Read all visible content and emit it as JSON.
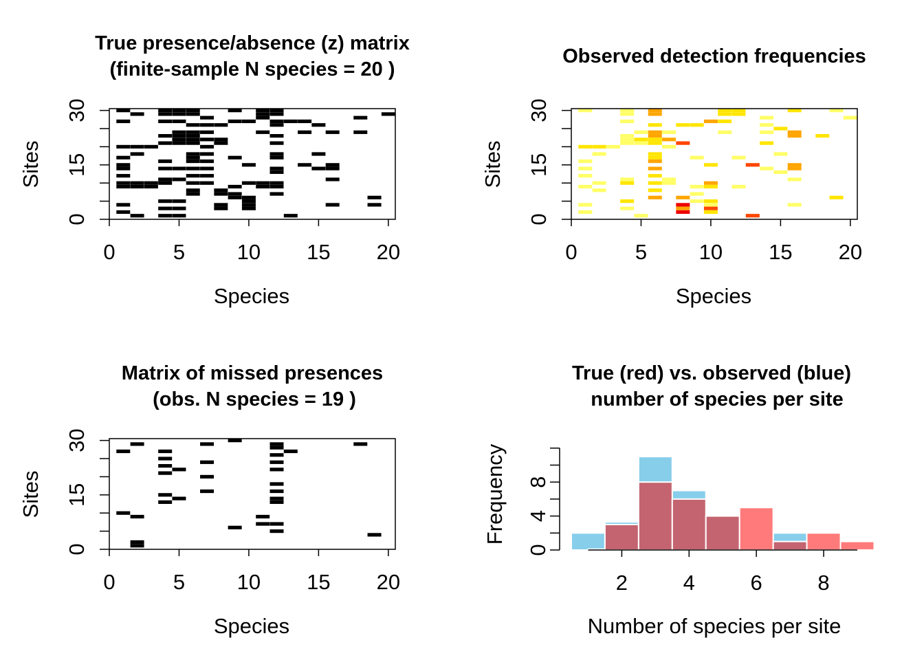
{
  "chart_data": [
    {
      "type": "heatmap",
      "title_lines": [
        "True presence/absence (z) matrix",
        "(finite-sample N species = 20 )"
      ],
      "xlabel": "Species",
      "ylabel": "Sites",
      "xlim": [
        0,
        20.5
      ],
      "ylim": [
        0,
        30.5
      ],
      "xticks": [
        0,
        5,
        10,
        15,
        20
      ],
      "yticks": [
        0,
        15,
        30
      ],
      "colors": [
        "#000000"
      ],
      "cells": [
        [
          1,
          30,
          1
        ],
        [
          1,
          27,
          1
        ],
        [
          1,
          20,
          1
        ],
        [
          1,
          17,
          1
        ],
        [
          1,
          15,
          1
        ],
        [
          1,
          14,
          1
        ],
        [
          1,
          12,
          1
        ],
        [
          1,
          10,
          1
        ],
        [
          1,
          9,
          1
        ],
        [
          1,
          4,
          1
        ],
        [
          1,
          2,
          1
        ],
        [
          2,
          29,
          1
        ],
        [
          2,
          20,
          1
        ],
        [
          2,
          18,
          1
        ],
        [
          2,
          10,
          1
        ],
        [
          2,
          9,
          1
        ],
        [
          2,
          1,
          1
        ],
        [
          3,
          20,
          1
        ],
        [
          3,
          10,
          1
        ],
        [
          3,
          9,
          1
        ],
        [
          4,
          30,
          1
        ],
        [
          4,
          29,
          1
        ],
        [
          4,
          27,
          1
        ],
        [
          4,
          23,
          1
        ],
        [
          4,
          21,
          1
        ],
        [
          4,
          16,
          1
        ],
        [
          4,
          14,
          1
        ],
        [
          4,
          11,
          1
        ],
        [
          4,
          10,
          1
        ],
        [
          4,
          5,
          1
        ],
        [
          4,
          3,
          1
        ],
        [
          4,
          1,
          1
        ],
        [
          5,
          30,
          1
        ],
        [
          5,
          29,
          1
        ],
        [
          5,
          27,
          1
        ],
        [
          5,
          24,
          1
        ],
        [
          5,
          23,
          1
        ],
        [
          5,
          22,
          1
        ],
        [
          5,
          21,
          1
        ],
        [
          5,
          14,
          1
        ],
        [
          5,
          11,
          1
        ],
        [
          5,
          5,
          1
        ],
        [
          5,
          3,
          1
        ],
        [
          5,
          1,
          1
        ],
        [
          6,
          30,
          1
        ],
        [
          6,
          29,
          1
        ],
        [
          6,
          26,
          1
        ],
        [
          6,
          24,
          1
        ],
        [
          6,
          23,
          1
        ],
        [
          6,
          22,
          1
        ],
        [
          6,
          21,
          1
        ],
        [
          6,
          18,
          1
        ],
        [
          6,
          17,
          1
        ],
        [
          6,
          16,
          1
        ],
        [
          6,
          14,
          1
        ],
        [
          6,
          12,
          1
        ],
        [
          6,
          10,
          1
        ],
        [
          6,
          8,
          1
        ],
        [
          6,
          7,
          1
        ],
        [
          7,
          28,
          1
        ],
        [
          7,
          26,
          1
        ],
        [
          7,
          24,
          1
        ],
        [
          7,
          22,
          1
        ],
        [
          7,
          20,
          1
        ],
        [
          7,
          18,
          1
        ],
        [
          7,
          16,
          1
        ],
        [
          7,
          14,
          1
        ],
        [
          7,
          12,
          1
        ],
        [
          7,
          10,
          1
        ],
        [
          8,
          26,
          1
        ],
        [
          8,
          22,
          1
        ],
        [
          8,
          21,
          1
        ],
        [
          8,
          8,
          1
        ],
        [
          8,
          7,
          1
        ],
        [
          8,
          4,
          1
        ],
        [
          8,
          3,
          1
        ],
        [
          9,
          30,
          1
        ],
        [
          9,
          27,
          1
        ],
        [
          9,
          17,
          1
        ],
        [
          9,
          9,
          1
        ],
        [
          9,
          7,
          1
        ],
        [
          9,
          6,
          1
        ],
        [
          10,
          27,
          1
        ],
        [
          10,
          15,
          1
        ],
        [
          10,
          10,
          1
        ],
        [
          10,
          6,
          1
        ],
        [
          10,
          5,
          1
        ],
        [
          10,
          4,
          1
        ],
        [
          10,
          3,
          1
        ],
        [
          11,
          30,
          1
        ],
        [
          11,
          29,
          1
        ],
        [
          11,
          28,
          1
        ],
        [
          11,
          24,
          1
        ],
        [
          11,
          10,
          1
        ],
        [
          11,
          9,
          1
        ],
        [
          12,
          30,
          1
        ],
        [
          12,
          29,
          1
        ],
        [
          12,
          27,
          1
        ],
        [
          12,
          26,
          1
        ],
        [
          12,
          23,
          1
        ],
        [
          12,
          21,
          1
        ],
        [
          12,
          18,
          1
        ],
        [
          12,
          17,
          1
        ],
        [
          12,
          14,
          1
        ],
        [
          12,
          13,
          1
        ],
        [
          12,
          10,
          1
        ],
        [
          12,
          9,
          1
        ],
        [
          12,
          7,
          1
        ],
        [
          13,
          27,
          1
        ],
        [
          13,
          1,
          1
        ],
        [
          14,
          27,
          1
        ],
        [
          14,
          24,
          1
        ],
        [
          14,
          15,
          1
        ],
        [
          15,
          26,
          1
        ],
        [
          15,
          18,
          1
        ],
        [
          15,
          14,
          1
        ],
        [
          16,
          24,
          1
        ],
        [
          16,
          15,
          1
        ],
        [
          16,
          14,
          1
        ],
        [
          16,
          11,
          1
        ],
        [
          16,
          4,
          1
        ],
        [
          17,
          31,
          1
        ],
        [
          18,
          31,
          1
        ],
        [
          18,
          28,
          1
        ],
        [
          18,
          24,
          1
        ],
        [
          19,
          31,
          1
        ],
        [
          19,
          6,
          1
        ],
        [
          19,
          4,
          1
        ],
        [
          20,
          29,
          1
        ]
      ]
    },
    {
      "type": "heatmap",
      "title_lines": [
        "Observed detection frequencies"
      ],
      "xlabel": "Species",
      "ylabel": "Sites",
      "xlim": [
        0,
        20.5
      ],
      "ylim": [
        0,
        30.5
      ],
      "xticks": [
        0,
        5,
        10,
        15,
        20
      ],
      "yticks": [
        0,
        15,
        30
      ],
      "colors": [
        "#ffffff",
        "#ffff66",
        "#ffe500",
        "#ffa500",
        "#ff4500",
        "#ee0000"
      ],
      "cells": [
        [
          1,
          30,
          1
        ],
        [
          1,
          20,
          2
        ],
        [
          1,
          16,
          1
        ],
        [
          1,
          14,
          1
        ],
        [
          1,
          12,
          1
        ],
        [
          1,
          9,
          1
        ],
        [
          1,
          4,
          1
        ],
        [
          1,
          2,
          1
        ],
        [
          2,
          20,
          2
        ],
        [
          2,
          18,
          1
        ],
        [
          2,
          10,
          1
        ],
        [
          2,
          8,
          1
        ],
        [
          3,
          20,
          1
        ],
        [
          4,
          30,
          1
        ],
        [
          4,
          29,
          1
        ],
        [
          4,
          27,
          1
        ],
        [
          4,
          23,
          1
        ],
        [
          4,
          22,
          1
        ],
        [
          4,
          21,
          1
        ],
        [
          4,
          11,
          1
        ],
        [
          4,
          10,
          2
        ],
        [
          4,
          5,
          2
        ],
        [
          4,
          3,
          1
        ],
        [
          5,
          24,
          1
        ],
        [
          5,
          22,
          2
        ],
        [
          5,
          21,
          1
        ],
        [
          5,
          1,
          1
        ],
        [
          6,
          30,
          3
        ],
        [
          6,
          29,
          3
        ],
        [
          6,
          26,
          2
        ],
        [
          6,
          24,
          3
        ],
        [
          6,
          23,
          3
        ],
        [
          6,
          22,
          2
        ],
        [
          6,
          21,
          2
        ],
        [
          6,
          18,
          2
        ],
        [
          6,
          17,
          2
        ],
        [
          6,
          16,
          3
        ],
        [
          6,
          14,
          3
        ],
        [
          6,
          12,
          2
        ],
        [
          6,
          10,
          2
        ],
        [
          6,
          8,
          2
        ],
        [
          6,
          6,
          3
        ],
        [
          7,
          24,
          1
        ],
        [
          7,
          22,
          3
        ],
        [
          7,
          20,
          1
        ],
        [
          7,
          11,
          1
        ],
        [
          7,
          10,
          1
        ],
        [
          8,
          26,
          2
        ],
        [
          8,
          21,
          4
        ],
        [
          8,
          6,
          3
        ],
        [
          8,
          4,
          5
        ],
        [
          8,
          3,
          3
        ],
        [
          8,
          2,
          5
        ],
        [
          9,
          26,
          2
        ],
        [
          9,
          17,
          1
        ],
        [
          9,
          9,
          1
        ],
        [
          9,
          7,
          1
        ],
        [
          9,
          5,
          1
        ],
        [
          10,
          27,
          3
        ],
        [
          10,
          15,
          2
        ],
        [
          10,
          10,
          3
        ],
        [
          10,
          9,
          2
        ],
        [
          10,
          5,
          2
        ],
        [
          10,
          4,
          1
        ],
        [
          10,
          3,
          4
        ],
        [
          10,
          2,
          2
        ],
        [
          11,
          30,
          2
        ],
        [
          11,
          29,
          2
        ],
        [
          11,
          27,
          2
        ],
        [
          11,
          24,
          1
        ],
        [
          12,
          30,
          2
        ],
        [
          12,
          29,
          2
        ],
        [
          12,
          17,
          1
        ],
        [
          12,
          9,
          1
        ],
        [
          13,
          15,
          4
        ],
        [
          13,
          1,
          4
        ],
        [
          14,
          28,
          1
        ],
        [
          14,
          26,
          1
        ],
        [
          14,
          24,
          1
        ],
        [
          14,
          21,
          2
        ],
        [
          14,
          14,
          1
        ],
        [
          15,
          25,
          2
        ],
        [
          15,
          18,
          1
        ],
        [
          15,
          13,
          1
        ],
        [
          16,
          30,
          2
        ],
        [
          16,
          24,
          3
        ],
        [
          16,
          23,
          3
        ],
        [
          16,
          15,
          3
        ],
        [
          16,
          14,
          3
        ],
        [
          16,
          11,
          1
        ],
        [
          16,
          4,
          1
        ],
        [
          18,
          23,
          2
        ],
        [
          19,
          30,
          1
        ],
        [
          19,
          6,
          2
        ],
        [
          20,
          28,
          1
        ]
      ]
    },
    {
      "type": "heatmap",
      "title_lines": [
        "Matrix of missed presences",
        "(obs. N species = 19 )"
      ],
      "xlabel": "Species",
      "ylabel": "Sites",
      "xlim": [
        0,
        20.5
      ],
      "ylim": [
        0,
        30.5
      ],
      "xticks": [
        0,
        5,
        10,
        15,
        20
      ],
      "yticks": [
        0,
        15,
        30
      ],
      "colors": [
        "#000000"
      ],
      "cells": [
        [
          1,
          27,
          1
        ],
        [
          1,
          10,
          1
        ],
        [
          2,
          29,
          1
        ],
        [
          2,
          9,
          1
        ],
        [
          2,
          1,
          1
        ],
        [
          2,
          2,
          1
        ],
        [
          4,
          27,
          1
        ],
        [
          4,
          25,
          1
        ],
        [
          4,
          23,
          1
        ],
        [
          4,
          21,
          1
        ],
        [
          4,
          15,
          1
        ],
        [
          4,
          13,
          1
        ],
        [
          5,
          31,
          1
        ],
        [
          5,
          22,
          1
        ],
        [
          5,
          14,
          1
        ],
        [
          7,
          29,
          1
        ],
        [
          7,
          24,
          1
        ],
        [
          7,
          20,
          1
        ],
        [
          7,
          16,
          1
        ],
        [
          9,
          30,
          1
        ],
        [
          9,
          6,
          1
        ],
        [
          11,
          9,
          1
        ],
        [
          11,
          7,
          1
        ],
        [
          12,
          29,
          1
        ],
        [
          12,
          28,
          1
        ],
        [
          12,
          26,
          1
        ],
        [
          12,
          24,
          1
        ],
        [
          12,
          22,
          1
        ],
        [
          12,
          18,
          1
        ],
        [
          12,
          16,
          1
        ],
        [
          12,
          14,
          1
        ],
        [
          12,
          13,
          1
        ],
        [
          12,
          7,
          1
        ],
        [
          12,
          5,
          1
        ],
        [
          13,
          27,
          1
        ],
        [
          17,
          31,
          1
        ],
        [
          18,
          29,
          1
        ],
        [
          19,
          4,
          1
        ]
      ]
    },
    {
      "type": "histogram",
      "title_lines": [
        "True (red) vs. observed (blue)",
        "number of species per site"
      ],
      "xlabel": "Number of species per site",
      "ylabel": "Frequency",
      "xticks": [
        2,
        4,
        6,
        8
      ],
      "yticks": [
        0,
        4,
        8
      ],
      "bin_width": 1,
      "series": [
        {
          "name": "observed",
          "color": "#87ceeb",
          "bins": [
            [
              0.5,
              2
            ],
            [
              1.5,
              3.3
            ],
            [
              2.5,
              11
            ],
            [
              3.5,
              7
            ],
            [
              4.5,
              2
            ],
            [
              5.5,
              0
            ],
            [
              6.5,
              2
            ],
            [
              7.5,
              0
            ]
          ]
        },
        {
          "name": "true",
          "color": "#ff7a7a",
          "bins": [
            [
              1,
              0.1
            ],
            [
              1.5,
              3
            ],
            [
              2.5,
              8
            ],
            [
              3.5,
              6
            ],
            [
              4.5,
              4
            ],
            [
              5.5,
              5
            ],
            [
              6.5,
              1
            ],
            [
              7.5,
              2
            ],
            [
              8.5,
              1
            ]
          ]
        }
      ],
      "overlap_color": "#c46470"
    }
  ]
}
